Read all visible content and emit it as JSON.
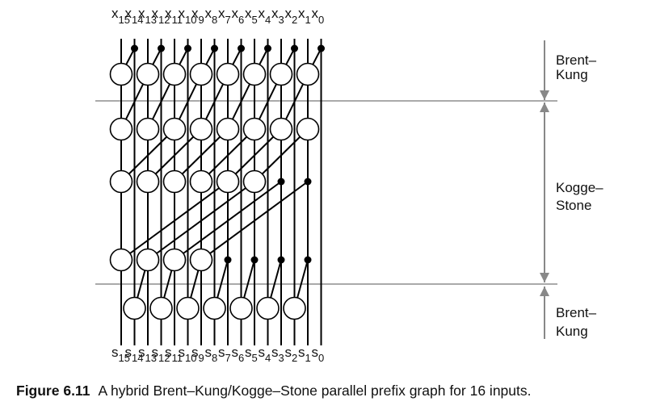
{
  "diagram": {
    "input_letter": "x",
    "output_letter": "s",
    "indices": [
      "15",
      "14",
      "13",
      "12",
      "11",
      "10",
      "9",
      "8",
      "7",
      "6",
      "5",
      "4",
      "3",
      "2",
      "1",
      "0"
    ],
    "sections": [
      {
        "label_line1": "Brent–",
        "label_line2": "Kung"
      },
      {
        "label_line1": "Kogge–",
        "label_line2": "Stone"
      },
      {
        "label_line1": "Brent–",
        "label_line2": "Kung"
      }
    ]
  },
  "caption": {
    "figure_label": "Figure 6.11",
    "text": "A hybrid Brent–Kung/Kogge–Stone parallel prefix graph for 16 inputs."
  }
}
